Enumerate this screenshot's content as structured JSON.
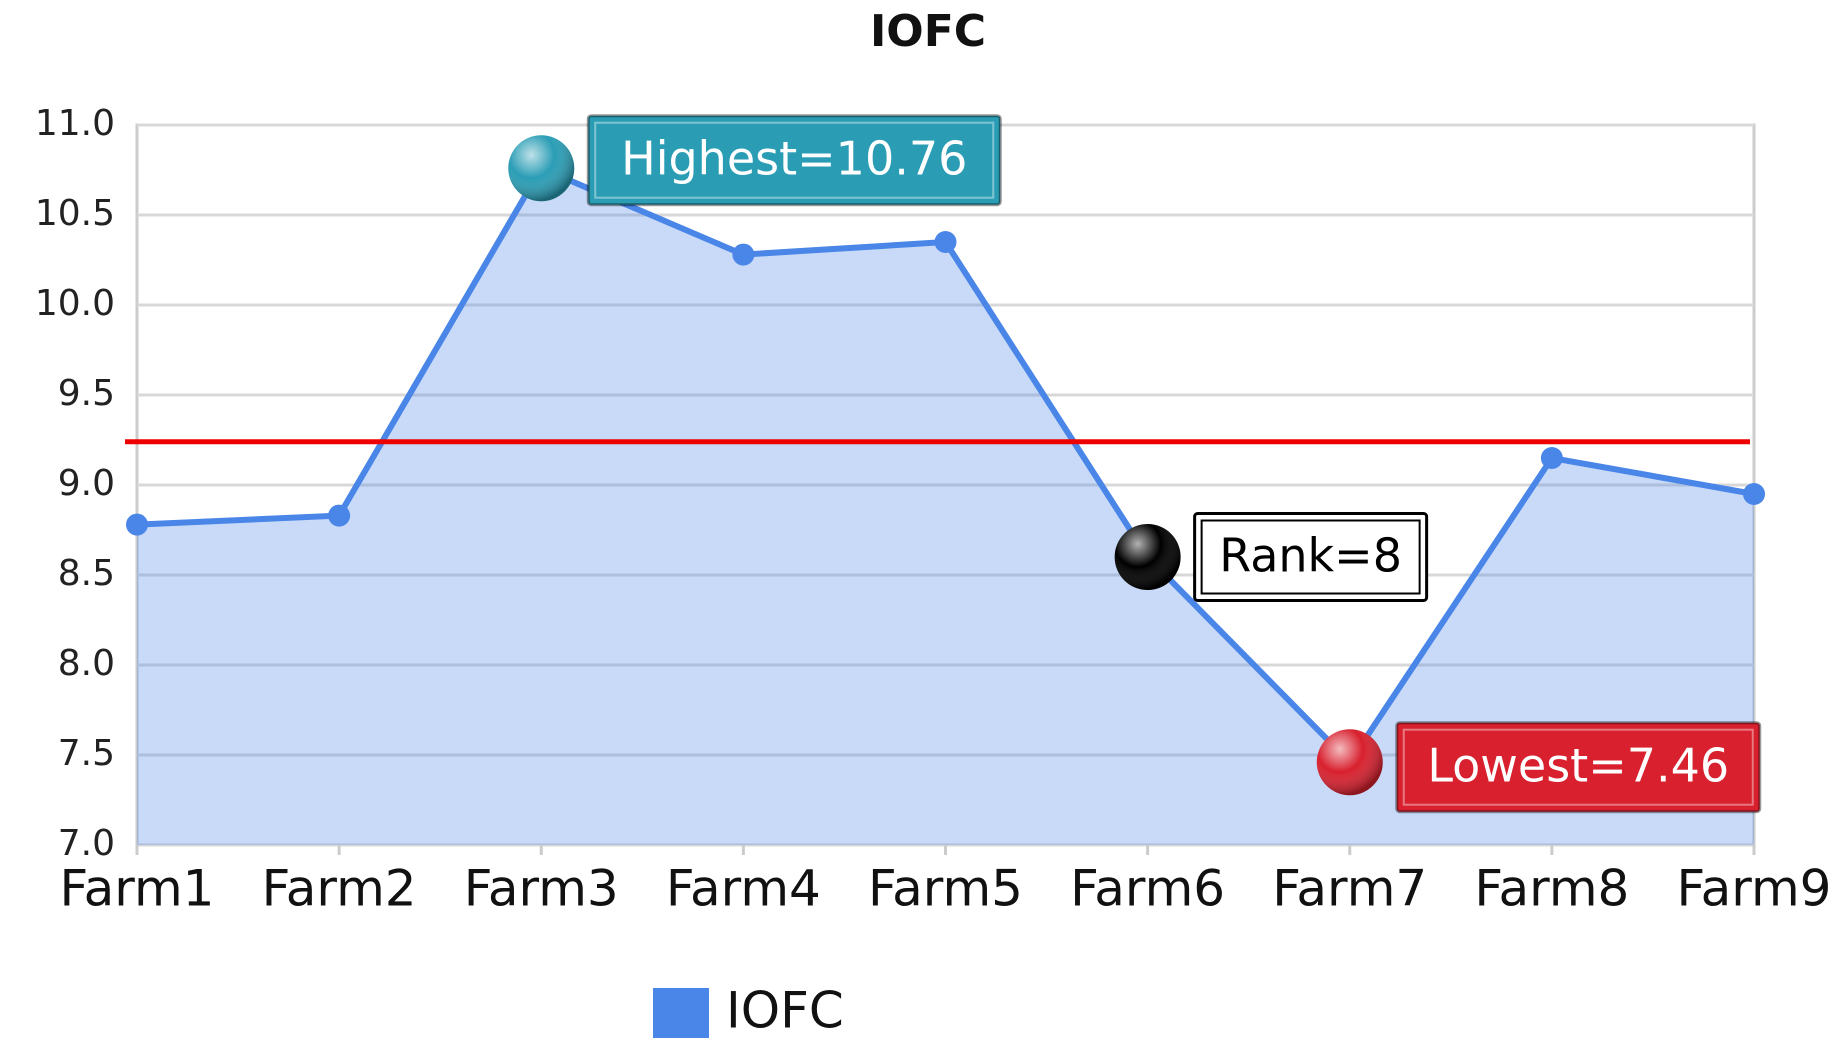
{
  "chart_data": {
    "type": "area",
    "title": "IOFC",
    "categories": [
      "Farm1",
      "Farm2",
      "Farm3",
      "Farm4",
      "Farm5",
      "Farm6",
      "Farm7",
      "Farm8",
      "Farm9"
    ],
    "series": [
      {
        "name": "IOFC",
        "color": "#4a86e8",
        "values": [
          8.78,
          8.83,
          10.76,
          10.28,
          10.35,
          8.6,
          7.46,
          9.15,
          8.95
        ]
      }
    ],
    "ylim": [
      7,
      11
    ],
    "yticks": [
      {
        "value": 7,
        "label": "7.0"
      },
      7.5,
      {
        "value": 8,
        "label": "8.0"
      },
      8.5,
      {
        "value": 9,
        "label": "9.0"
      },
      9.5,
      {
        "value": 10,
        "label": "10.0"
      },
      10.5,
      {
        "value": 11,
        "label": "11.0"
      }
    ],
    "grid": true,
    "reference_line": {
      "value": 9.24,
      "color": "#ee0000"
    },
    "annotations": [
      {
        "text": "Highest=10.76",
        "category": "Farm3",
        "color": "#2a9db5"
      },
      {
        "text": "Rank=8",
        "category": "Farm6",
        "color": "#000000"
      },
      {
        "text": "Lowest=7.46",
        "category": "Farm7",
        "color": "#d8202e"
      }
    ],
    "legend": "bottom"
  }
}
